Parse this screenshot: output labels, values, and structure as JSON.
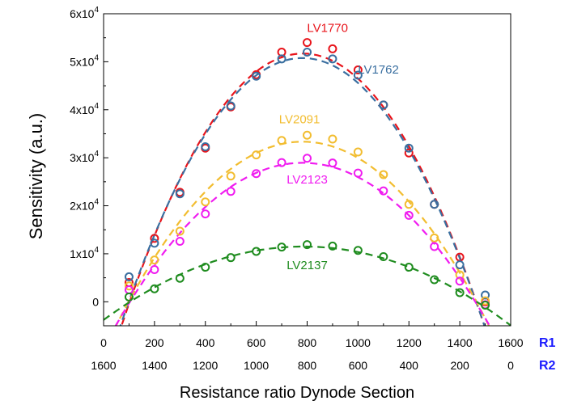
{
  "chart_data": {
    "type": "scatter",
    "title": "",
    "xlabel": "Resistance ratio Dynode Section",
    "ylabel": "Sensitivity (a.u.)",
    "xlim": [
      0,
      1600
    ],
    "ylim": [
      -5000,
      60000
    ],
    "x_ticks": [
      0,
      200,
      400,
      600,
      800,
      1000,
      1200,
      1400,
      1600
    ],
    "r1_tick_labels": [
      "0",
      "200",
      "400",
      "600",
      "800",
      "1000",
      "1200",
      "1400",
      "1600"
    ],
    "r2_tick_labels": [
      "1600",
      "1400",
      "1200",
      "1000",
      "800",
      "600",
      "400",
      "200",
      "0"
    ],
    "row_labels": [
      "R1",
      "R2"
    ],
    "y_ticks": [
      {
        "value": 0,
        "base": "0",
        "exp": ""
      },
      {
        "value": 10000,
        "base": "1x10",
        "exp": "4"
      },
      {
        "value": 20000,
        "base": "2x10",
        "exp": "4"
      },
      {
        "value": 30000,
        "base": "3x10",
        "exp": "4"
      },
      {
        "value": 40000,
        "base": "4x10",
        "exp": "4"
      },
      {
        "value": 50000,
        "base": "5x10",
        "exp": "4"
      },
      {
        "value": 60000,
        "base": "6x10",
        "exp": "4"
      }
    ],
    "x": [
      100,
      200,
      300,
      400,
      500,
      600,
      700,
      800,
      900,
      1000,
      1100,
      1200,
      1300,
      1400,
      1500
    ],
    "series": [
      {
        "name": "LV1770",
        "color": "#e8141b",
        "values": [
          4000,
          13200,
          22800,
          32000,
          40600,
          47300,
          52000,
          54000,
          52700,
          48300,
          41000,
          31000,
          20300,
          9300,
          0
        ],
        "label_pos": [
          880,
          56200
        ]
      },
      {
        "name": "LV1762",
        "color": "#3a6fa0",
        "values": [
          5200,
          12200,
          22500,
          32300,
          40800,
          47000,
          50600,
          52000,
          50600,
          47200,
          41000,
          32000,
          20300,
          7700,
          1400
        ],
        "label_pos": [
          1080,
          47500
        ]
      },
      {
        "name": "LV2091",
        "color": "#f2bd30",
        "values": [
          3300,
          8700,
          14700,
          20800,
          26200,
          30600,
          33600,
          34700,
          33900,
          31200,
          26500,
          20300,
          13300,
          5600,
          200
        ],
        "label_pos": [
          770,
          37200
        ]
      },
      {
        "name": "LV2123",
        "color": "#f01cf0",
        "values": [
          2500,
          6700,
          12600,
          18300,
          23000,
          26700,
          29000,
          29900,
          28900,
          26800,
          23100,
          18000,
          11500,
          4300,
          -600
        ],
        "label_pos": [
          800,
          24600
        ]
      },
      {
        "name": "LV2137",
        "color": "#1f8c1f",
        "values": [
          1000,
          2700,
          4900,
          7200,
          9200,
          10500,
          11400,
          11900,
          11600,
          10700,
          9400,
          7200,
          4600,
          1900,
          -700
        ],
        "label_pos": [
          800,
          6800
        ]
      }
    ]
  }
}
